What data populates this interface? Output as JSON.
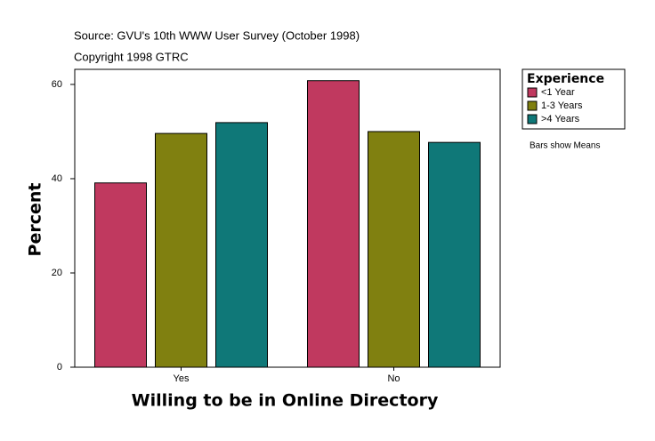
{
  "chart_data": {
    "type": "bar",
    "title": "Source: GVU's 10th WWW User Survey (October 1998)",
    "subtitle": "Copyright 1998 GTRC",
    "x_label": "Willing to be in Online Directory",
    "y_label": "Percent",
    "legend_title": "Experience",
    "note": "Bars show Means",
    "categories": [
      "Yes",
      "No"
    ],
    "series": [
      {
        "name": "<1 Year",
        "color": "#c0395f",
        "values": [
          39.1,
          60.8
        ]
      },
      {
        "name": "1-3 Years",
        "color": "#808010",
        "values": [
          49.6,
          50.0
        ]
      },
      {
        "name": ">4 Years",
        "color": "#0f7878",
        "values": [
          51.9,
          47.7
        ]
      }
    ],
    "ylim": [
      0,
      63.2
    ],
    "yticks": [
      0,
      20,
      40,
      60
    ]
  }
}
